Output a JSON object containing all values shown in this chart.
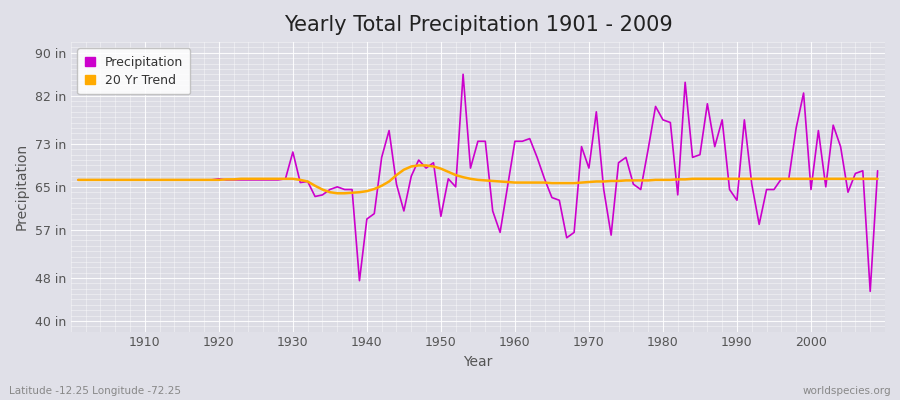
{
  "title": "Yearly Total Precipitation 1901 - 2009",
  "xlabel": "Year",
  "ylabel": "Precipitation",
  "footnote_left": "Latitude -12.25 Longitude -72.25",
  "footnote_right": "worldspecies.org",
  "years": [
    1901,
    1902,
    1903,
    1904,
    1905,
    1906,
    1907,
    1908,
    1909,
    1910,
    1911,
    1912,
    1913,
    1914,
    1915,
    1916,
    1917,
    1918,
    1919,
    1920,
    1921,
    1922,
    1923,
    1924,
    1925,
    1926,
    1927,
    1928,
    1929,
    1930,
    1931,
    1932,
    1933,
    1934,
    1935,
    1936,
    1937,
    1938,
    1939,
    1940,
    1941,
    1942,
    1943,
    1944,
    1945,
    1946,
    1947,
    1948,
    1949,
    1950,
    1951,
    1952,
    1953,
    1954,
    1955,
    1956,
    1957,
    1958,
    1959,
    1960,
    1961,
    1962,
    1963,
    1964,
    1965,
    1966,
    1967,
    1968,
    1969,
    1970,
    1971,
    1972,
    1973,
    1974,
    1975,
    1976,
    1977,
    1978,
    1979,
    1980,
    1981,
    1982,
    1983,
    1984,
    1985,
    1986,
    1987,
    1988,
    1989,
    1990,
    1991,
    1992,
    1993,
    1994,
    1995,
    1996,
    1997,
    1998,
    1999,
    2000,
    2001,
    2002,
    2003,
    2004,
    2005,
    2006,
    2007,
    2008,
    2009
  ],
  "precip": [
    66.3,
    66.3,
    66.3,
    66.3,
    66.3,
    66.3,
    66.3,
    66.3,
    66.3,
    66.3,
    66.3,
    66.3,
    66.3,
    66.3,
    66.3,
    66.3,
    66.3,
    66.3,
    66.3,
    66.5,
    66.3,
    66.3,
    66.3,
    66.3,
    66.3,
    66.3,
    66.3,
    66.3,
    66.5,
    71.5,
    65.8,
    66.0,
    63.2,
    63.5,
    64.5,
    65.0,
    64.5,
    64.5,
    47.5,
    59.0,
    60.0,
    70.5,
    75.5,
    65.5,
    60.5,
    67.0,
    70.0,
    68.5,
    69.5,
    59.5,
    66.5,
    65.0,
    86.0,
    68.5,
    73.5,
    73.5,
    60.5,
    56.5,
    65.0,
    73.5,
    73.5,
    74.0,
    70.5,
    66.5,
    63.0,
    62.5,
    55.5,
    56.5,
    72.5,
    68.5,
    79.0,
    64.5,
    56.0,
    69.5,
    70.5,
    65.5,
    64.5,
    72.0,
    80.0,
    77.5,
    77.0,
    63.5,
    84.5,
    70.5,
    71.0,
    80.5,
    72.5,
    77.5,
    64.5,
    62.5,
    77.5,
    65.5,
    58.0,
    64.5,
    64.5,
    66.5,
    66.5,
    76.0,
    82.5,
    64.5,
    75.5,
    65.0,
    76.5,
    72.5,
    64.0,
    67.5,
    68.0,
    45.5,
    68.0
  ],
  "trend": [
    66.3,
    66.3,
    66.3,
    66.3,
    66.3,
    66.3,
    66.3,
    66.3,
    66.3,
    66.3,
    66.3,
    66.3,
    66.3,
    66.3,
    66.3,
    66.3,
    66.3,
    66.3,
    66.3,
    66.3,
    66.4,
    66.4,
    66.5,
    66.5,
    66.5,
    66.5,
    66.5,
    66.5,
    66.5,
    66.5,
    66.3,
    66.0,
    65.2,
    64.5,
    64.0,
    63.8,
    63.8,
    63.9,
    64.0,
    64.2,
    64.6,
    65.2,
    66.0,
    67.2,
    68.2,
    68.8,
    69.0,
    69.0,
    68.8,
    68.4,
    67.8,
    67.2,
    66.8,
    66.5,
    66.3,
    66.2,
    66.1,
    66.0,
    65.9,
    65.8,
    65.8,
    65.8,
    65.8,
    65.8,
    65.7,
    65.7,
    65.7,
    65.7,
    65.8,
    65.9,
    66.0,
    66.0,
    66.1,
    66.1,
    66.2,
    66.2,
    66.2,
    66.2,
    66.3,
    66.3,
    66.3,
    66.4,
    66.4,
    66.5,
    66.5,
    66.5,
    66.5,
    66.5,
    66.5,
    66.5,
    66.5,
    66.5,
    66.5,
    66.5,
    66.5,
    66.5,
    66.5,
    66.5,
    66.5,
    66.5,
    66.5,
    66.5,
    66.5,
    66.5,
    66.5,
    66.5,
    66.5,
    66.5,
    66.5
  ],
  "precip_color": "#cc00cc",
  "trend_color": "#ffaa00",
  "bg_color": "#e0e0e8",
  "plot_bg_color": "#dcdce4",
  "grid_major_color": "#ffffff",
  "grid_minor_color": "#ffffff",
  "yticks": [
    40,
    48,
    57,
    65,
    73,
    82,
    90
  ],
  "ytick_labels": [
    "40 in",
    "48 in",
    "57 in",
    "65 in",
    "73 in",
    "82 in",
    "90 in"
  ],
  "ylim": [
    38,
    92
  ],
  "xlim": [
    1900,
    2010
  ],
  "xticks": [
    1910,
    1920,
    1930,
    1940,
    1950,
    1960,
    1970,
    1980,
    1990,
    2000
  ],
  "title_fontsize": 15,
  "axis_label_fontsize": 10,
  "tick_fontsize": 9,
  "legend_fontsize": 9,
  "precip_linewidth": 1.2,
  "trend_linewidth": 1.8
}
